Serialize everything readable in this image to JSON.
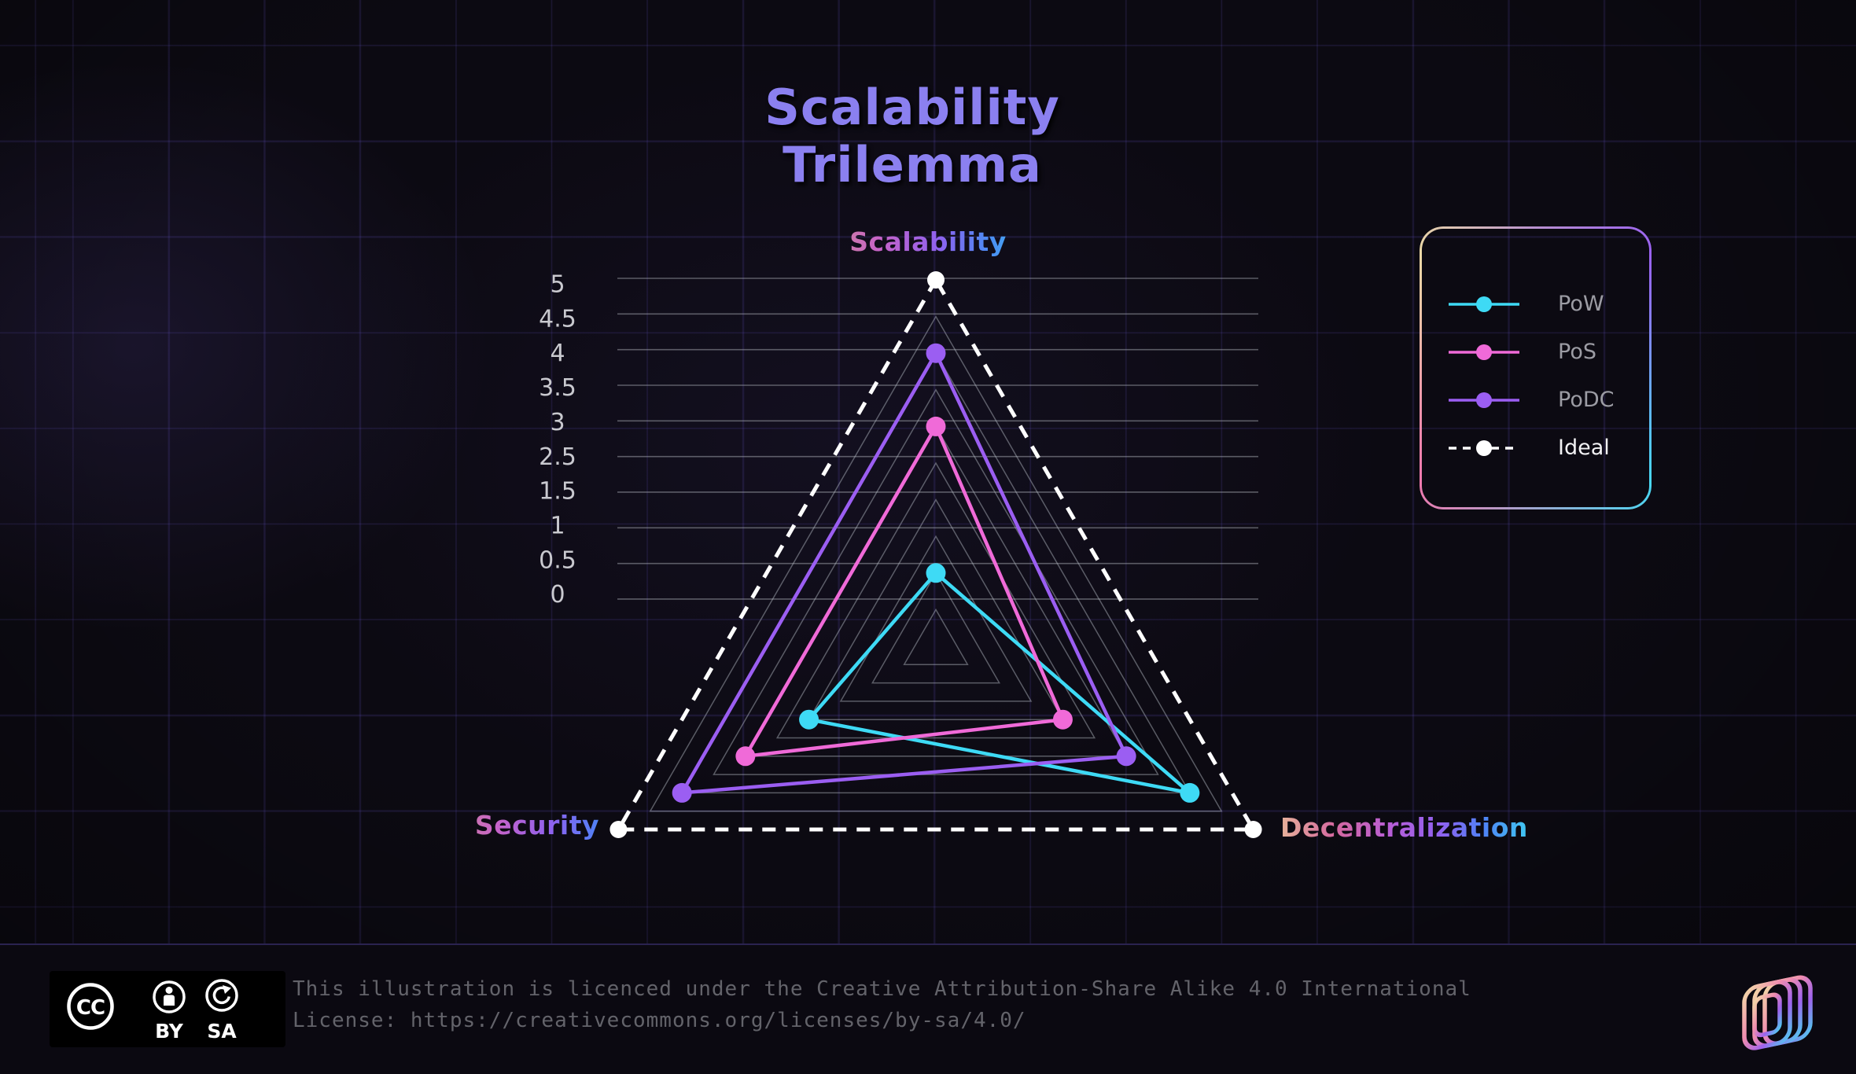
{
  "title": "Scalability Trilemma",
  "chart_data": {
    "type": "radar",
    "title": "Scalability Trilemma",
    "axes": [
      "Scalability",
      "Security",
      "Decentralization"
    ],
    "scale": {
      "min": 0,
      "max": 5,
      "tick_labels_top_to_bottom": [
        "5",
        "4.5",
        "4",
        "3.5",
        "3",
        "2.5",
        "1.5",
        "1",
        "0.5",
        "0"
      ]
    },
    "series": [
      {
        "name": "PoW",
        "color": "#3edaf5",
        "style": "solid",
        "values": [
          1,
          2,
          4
        ]
      },
      {
        "name": "PoS",
        "color": "#f06ad8",
        "style": "solid",
        "values": [
          3,
          3,
          2
        ]
      },
      {
        "name": "PoDC",
        "color": "#9b5ef2",
        "style": "solid",
        "values": [
          4,
          4,
          3
        ]
      },
      {
        "name": "Ideal",
        "color": "#ffffff",
        "style": "dashed",
        "values": [
          5,
          5,
          5
        ]
      }
    ],
    "legend_position": "top-right",
    "grid": "concentric-triangles"
  },
  "footer": {
    "badge": {
      "cc": "CC",
      "by": "BY",
      "sa": "SA"
    },
    "license_line1": "This illustration is licenced under the Creative Attribution-Share Alike 4.0 International",
    "license_line2": "License: https://creativecommons.org/licenses/by-sa/4.0/"
  },
  "colors": {
    "background": "#0c0a12",
    "title": "#8b80f0",
    "grid_line": "#6352c7",
    "tick_text": "#c9c9cf",
    "ring_line": "#b9bec8",
    "legend_text": "#9c9ca4",
    "legend_text_ideal": "#f2f2f4",
    "footer_text": "#63636a",
    "axis_label_gradient": [
      "#e7b29a",
      "#d4689f",
      "#b75ed8",
      "#8e62ef",
      "#4f82f5",
      "#40c8f2"
    ],
    "legend_border_gradient": [
      "#ecd9a6",
      "#ef79ae",
      "#9a62f0",
      "#49d6f2"
    ]
  }
}
